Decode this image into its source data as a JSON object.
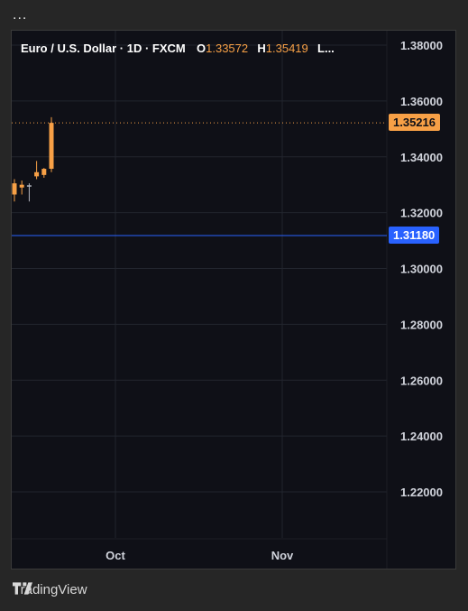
{
  "header": {
    "menu": "..."
  },
  "legend": {
    "symbol": "Euro / U.S. Dollar · 1D · FXCM",
    "open_label": "O",
    "open_value": "1.33572",
    "high_label": "H",
    "high_value": "1.35419",
    "low_label": "L..."
  },
  "footer": {
    "brand": "TradingView"
  },
  "colors": {
    "up": "#f7a046",
    "neutral": "#b2b5be",
    "hline": "#2962ff",
    "bg": "#0f1017",
    "grid": "#22252e"
  },
  "chart_data": {
    "type": "candlestick",
    "ylim": [
      1.2,
      1.38
    ],
    "yticks": [
      "1.22000",
      "1.24000",
      "1.26000",
      "1.28000",
      "1.30000",
      "1.32000",
      "1.34000",
      "1.36000",
      "1.38000"
    ],
    "xticks": [
      "Oct",
      "Nov"
    ],
    "candles": [
      {
        "open": 1.3305,
        "high": 1.332,
        "low": 1.324,
        "close": 1.3265
      },
      {
        "open": 1.329,
        "high": 1.3315,
        "low": 1.3265,
        "close": 1.33
      },
      {
        "open": 1.3295,
        "high": 1.3305,
        "low": 1.324,
        "close": 1.3298
      },
      {
        "open": 1.333,
        "high": 1.3385,
        "low": 1.332,
        "close": 1.3345
      },
      {
        "open": 1.3335,
        "high": 1.336,
        "low": 1.3325,
        "close": 1.3357
      },
      {
        "open": 1.33572,
        "high": 1.35419,
        "low": 1.3345,
        "close": 1.35216
      }
    ],
    "last_price": "1.35216",
    "horizontal_line": "1.31180"
  }
}
